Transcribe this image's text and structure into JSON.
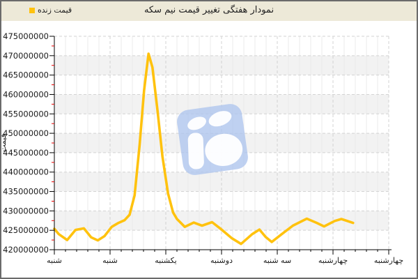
{
  "chart_data": {
    "type": "line",
    "title": "نمودار هفتگی تغییر قیمت نیم سکه",
    "ylabel": "قیمت",
    "xlabel": "",
    "categories": [
      "شنبه",
      "شنبه",
      "یکشنبه",
      "دوشنبه",
      "سه شنبه",
      "چهارشنبه",
      "چهارشنبه"
    ],
    "ylim": [
      420000000,
      475000000
    ],
    "ytick_step": 5000000,
    "ytick_labels": [
      "475000000",
      "470000000",
      "465000000",
      "460000000",
      "455000000",
      "450000000",
      "445000000",
      "440000000",
      "435000000",
      "430000000",
      "425000000",
      "420000000"
    ],
    "legend": {
      "label": "قیمت زنده",
      "position": "top-left"
    },
    "grid": {
      "major": "dashed",
      "minor": "faint vertical lines",
      "bands": "alternating horizontal stripes"
    },
    "series": [
      {
        "name": "قیمت زنده",
        "color": "#FFC20E",
        "points": [
          [
            0.0,
            425400000
          ],
          [
            0.08,
            424000000
          ],
          [
            0.23,
            422500000
          ],
          [
            0.38,
            425100000
          ],
          [
            0.53,
            425500000
          ],
          [
            0.66,
            423200000
          ],
          [
            0.78,
            422400000
          ],
          [
            0.9,
            423500000
          ],
          [
            1.03,
            425900000
          ],
          [
            1.15,
            426900000
          ],
          [
            1.26,
            427600000
          ],
          [
            1.35,
            429000000
          ],
          [
            1.44,
            434000000
          ],
          [
            1.53,
            447000000
          ],
          [
            1.61,
            461000000
          ],
          [
            1.69,
            470500000
          ],
          [
            1.76,
            467000000
          ],
          [
            1.85,
            456000000
          ],
          [
            1.94,
            444000000
          ],
          [
            2.04,
            434500000
          ],
          [
            2.13,
            429600000
          ],
          [
            2.2,
            427900000
          ],
          [
            2.34,
            425900000
          ],
          [
            2.5,
            427000000
          ],
          [
            2.65,
            426200000
          ],
          [
            2.83,
            427100000
          ],
          [
            3.0,
            425200000
          ],
          [
            3.18,
            423000000
          ],
          [
            3.35,
            421500000
          ],
          [
            3.55,
            424000000
          ],
          [
            3.68,
            425200000
          ],
          [
            3.79,
            423300000
          ],
          [
            3.9,
            422000000
          ],
          [
            4.08,
            424000000
          ],
          [
            4.28,
            426200000
          ],
          [
            4.53,
            428000000
          ],
          [
            4.71,
            426900000
          ],
          [
            4.84,
            426000000
          ],
          [
            5.03,
            427400000
          ],
          [
            5.15,
            427900000
          ],
          [
            5.36,
            426900000
          ]
        ]
      }
    ],
    "watermark": "light blue rounded-square logo"
  },
  "colors": {
    "header_bg": "#EDE9D8",
    "plot_bg": "#FFFFFF",
    "band": "#F2F2F2",
    "major_grid": "#D3D3D3",
    "minor_grid": "#EBEBEB",
    "axis": "#000000",
    "minor_tick_red": "#E60000",
    "line": "#FFC20E",
    "watermark_blue": "#AFC6EE",
    "frame_border": "#6B6B6B",
    "text": "#1A1A1A"
  }
}
